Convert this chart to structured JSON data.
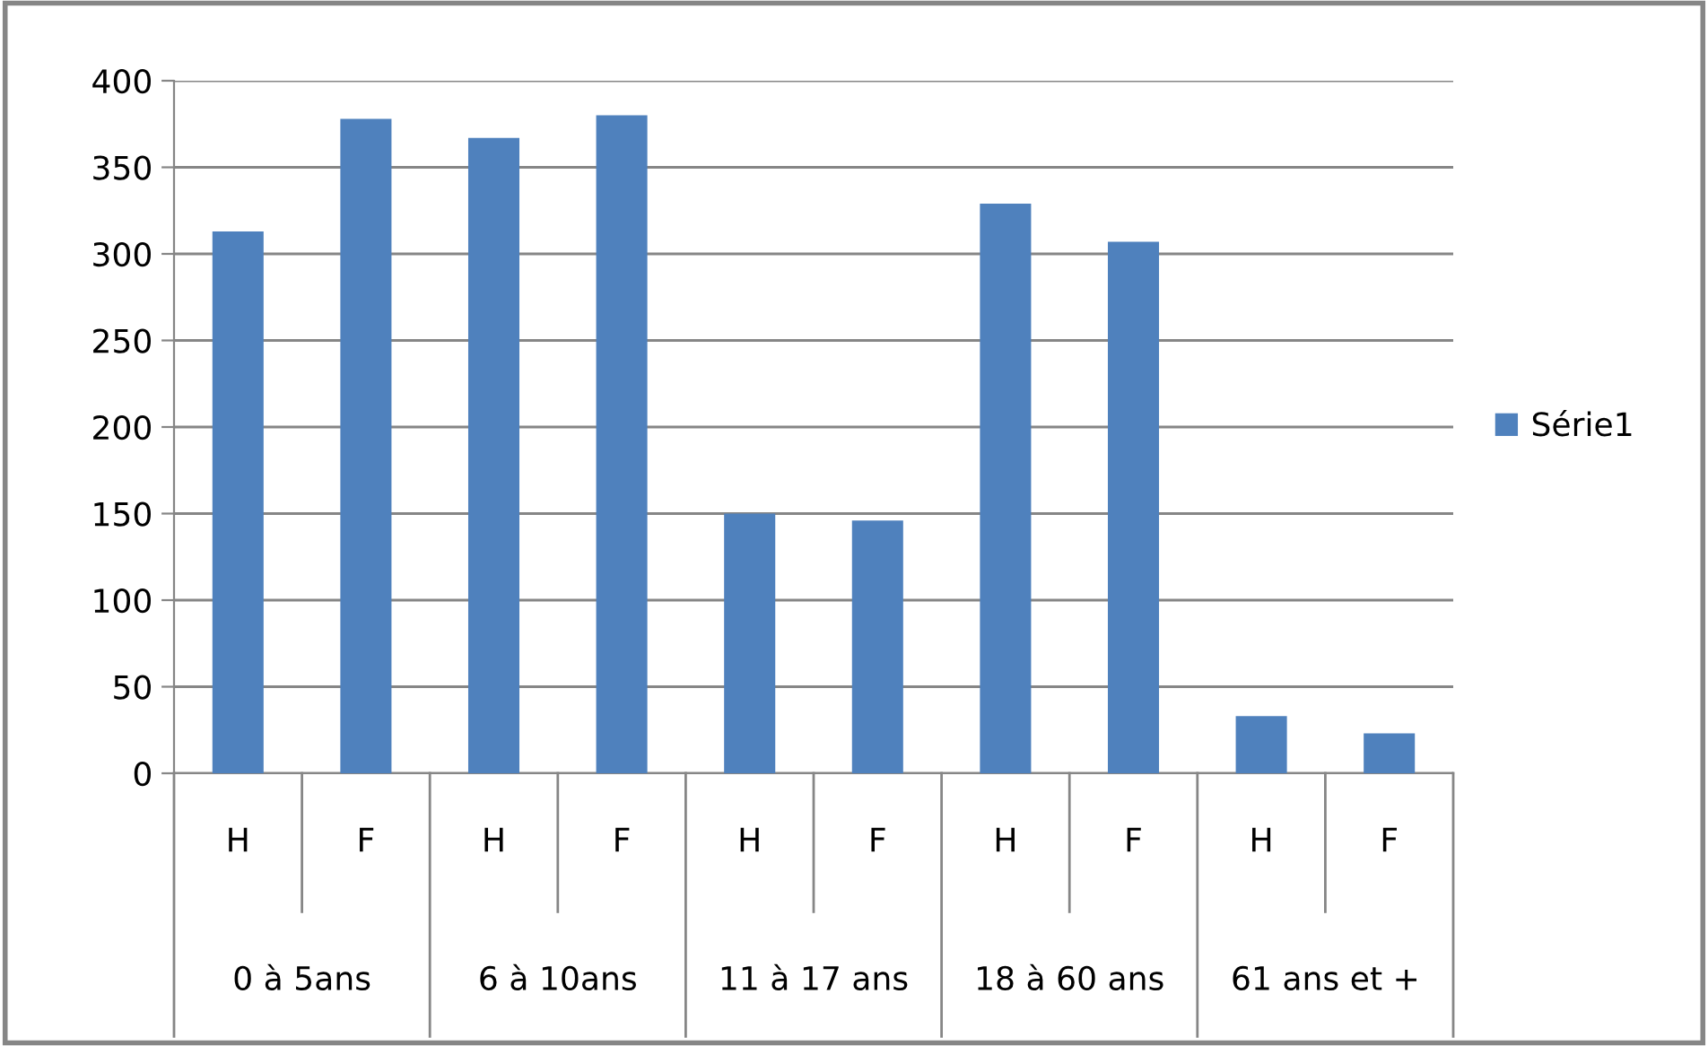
{
  "chart_data": {
    "type": "bar",
    "categories": [
      "H",
      "F",
      "H",
      "F",
      "H",
      "F",
      "H",
      "F",
      "H",
      "F"
    ],
    "series": [
      {
        "name": "Série1",
        "color": "#4f81bd",
        "values": [
          313,
          378,
          367,
          380,
          150,
          146,
          329,
          307,
          33,
          23
        ]
      }
    ],
    "annotations": [
      "0 à 5ans",
      "6 à 10ans",
      "11 à 17 ans",
      "18 à 60 ans",
      "61 ans et +"
    ],
    "ylim": [
      0,
      400
    ],
    "yticks": [
      0,
      50,
      100,
      150,
      200,
      250,
      300,
      350,
      400
    ],
    "grid": "y",
    "legend": "right"
  }
}
